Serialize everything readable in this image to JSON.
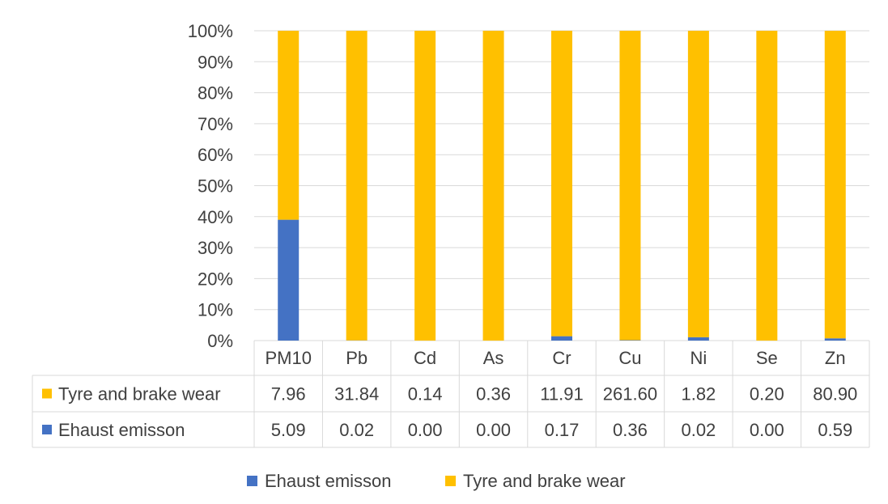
{
  "chart_data": {
    "type": "bar",
    "stacking": "percent",
    "categories": [
      "PM10",
      "Pb",
      "Cd",
      "As",
      "Cr",
      "Cu",
      "Ni",
      "Se",
      "Zn"
    ],
    "series": [
      {
        "name": "Ehaust emisson",
        "color": "#4472C4",
        "values": [
          "5.09",
          "0.02",
          "0.00",
          "0.00",
          "0.17",
          "0.36",
          "0.02",
          "0.00",
          "0.59"
        ]
      },
      {
        "name": "Tyre and brake wear",
        "color": "#FFC000",
        "values": [
          "7.96",
          "31.84",
          "0.14",
          "0.36",
          "11.91",
          "261.60",
          "1.82",
          "0.20",
          "80.90"
        ]
      }
    ],
    "y_tick_labels": [
      "0%",
      "10%",
      "20%",
      "30%",
      "40%",
      "50%",
      "60%",
      "70%",
      "80%",
      "90%",
      "100%"
    ],
    "ylim": [
      0,
      100
    ],
    "grid": true,
    "data_table": true,
    "legend_position": "bottom"
  }
}
